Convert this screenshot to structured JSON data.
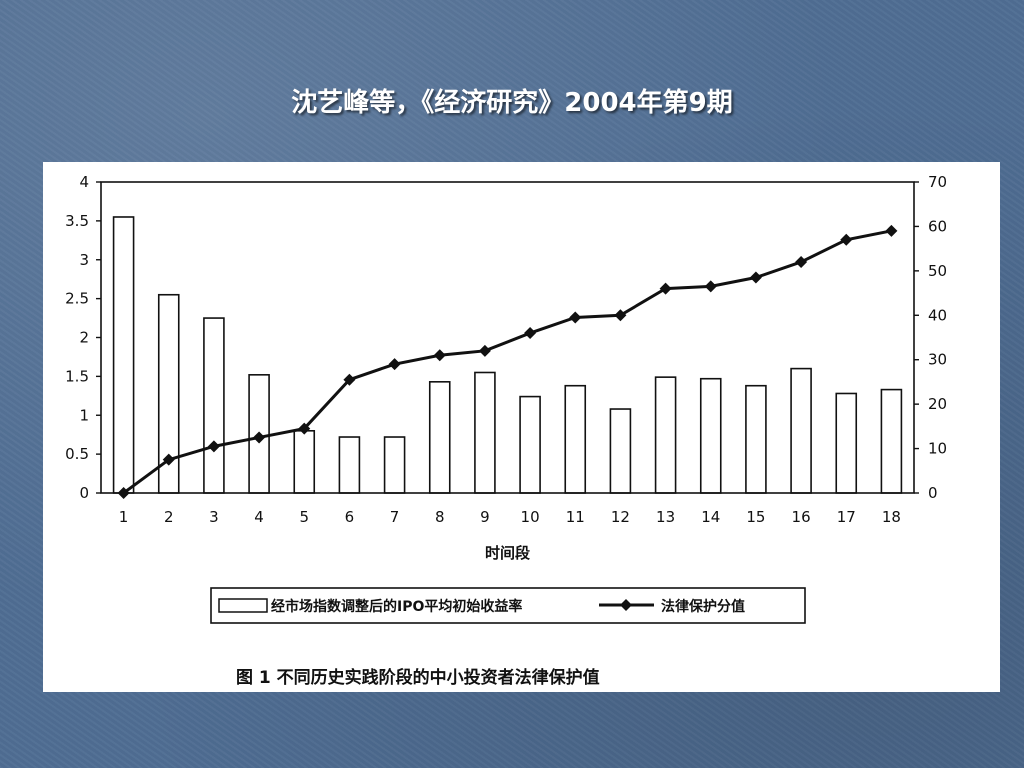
{
  "slide": {
    "title": "沈艺峰等，《经济研究》2004年第9期"
  },
  "chart_data": {
    "type": "bar",
    "title": "图 1   不同历史实践阶段的中小投资者法律保护值",
    "xlabel": "时间段",
    "categories": [
      "1",
      "2",
      "3",
      "4",
      "5",
      "6",
      "7",
      "8",
      "9",
      "10",
      "11",
      "12",
      "13",
      "14",
      "15",
      "16",
      "17",
      "18"
    ],
    "left_axis": {
      "ylim": [
        0,
        4
      ],
      "ticks": [
        "0",
        "0.5",
        "1",
        "1.5",
        "2",
        "2.5",
        "3",
        "3.5",
        "4"
      ]
    },
    "right_axis": {
      "ylim": [
        0,
        70
      ],
      "ticks": [
        "0",
        "10",
        "20",
        "30",
        "40",
        "50",
        "60",
        "70"
      ]
    },
    "series": [
      {
        "name": "经市场指数调整后的IPO平均初始收益率",
        "kind": "bar",
        "axis": "left",
        "values": [
          3.55,
          2.55,
          2.25,
          1.52,
          0.8,
          0.72,
          0.72,
          1.43,
          1.55,
          1.24,
          1.38,
          1.08,
          1.49,
          1.47,
          1.38,
          1.6,
          1.28,
          1.33
        ]
      },
      {
        "name": "法律保护分值",
        "kind": "line",
        "axis": "right",
        "marker": "diamond",
        "values": [
          0,
          7.5,
          10.5,
          12.5,
          14.5,
          25.5,
          29,
          31,
          32,
          36,
          39.5,
          40,
          46,
          46.5,
          48.5,
          52,
          57,
          59
        ]
      }
    ],
    "legend": {
      "position": "bottom"
    },
    "grid": false,
    "colors": {
      "bar_fill": "#ffffff",
      "bar_stroke": "#111111",
      "line": "#111111"
    }
  }
}
